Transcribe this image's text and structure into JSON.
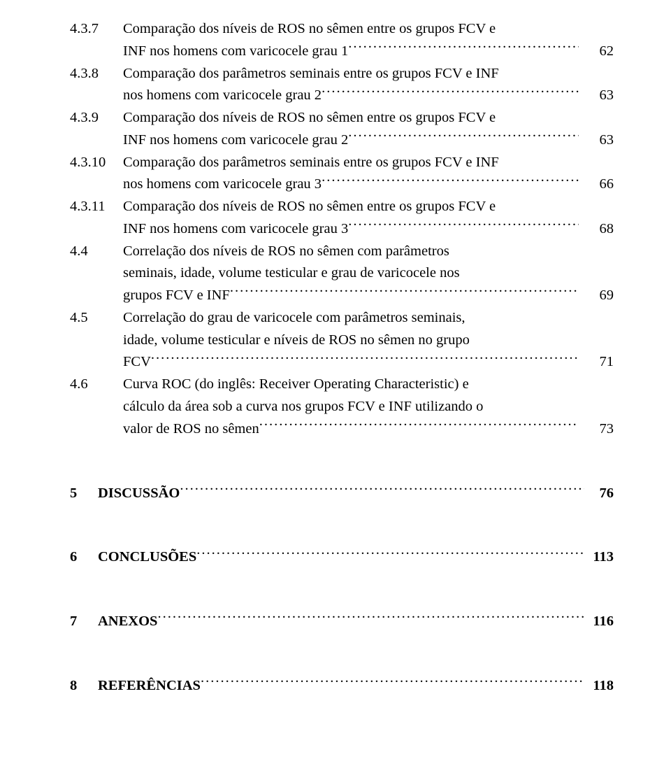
{
  "toc": [
    {
      "num": "4.3.7",
      "lines": [
        "Comparação dos níveis de ROS no sêmen entre os grupos FCV e"
      ],
      "last": "INF nos homens com varicocele grau 1",
      "page": "62"
    },
    {
      "num": "4.3.8",
      "lines": [
        "Comparação dos parâmetros seminais entre os grupos FCV e INF"
      ],
      "last": "nos homens com varicocele grau 2",
      "page": "63"
    },
    {
      "num": "4.3.9",
      "lines": [
        "Comparação dos níveis de ROS no sêmen entre os grupos FCV e"
      ],
      "last": "INF nos homens com varicocele grau 2",
      "page": "63"
    },
    {
      "num": "4.3.10",
      "lines": [
        "Comparação dos parâmetros seminais entre os grupos FCV e INF"
      ],
      "last": "nos homens com varicocele grau 3",
      "page": "66"
    },
    {
      "num": "4.3.11",
      "lines": [
        "Comparação dos níveis de ROS no sêmen entre os grupos FCV e"
      ],
      "last": "INF nos homens com varicocele grau 3",
      "page": "68"
    },
    {
      "num": "4.4",
      "lines": [
        "Correlação dos níveis de ROS no sêmen com parâmetros",
        "seminais, idade, volume testicular e grau de varicocele nos"
      ],
      "last": "grupos FCV e INF",
      "page": "69"
    },
    {
      "num": "4.5",
      "lines": [
        "Correlação do grau de varicocele com parâmetros seminais,",
        "idade, volume testicular e níveis de ROS no sêmen no grupo"
      ],
      "last": "FCV",
      "page": "71"
    },
    {
      "num": "4.6",
      "lines": [
        "Curva ROC (do inglês: Receiver Operating Characteristic) e",
        "cálculo da área sob a curva nos grupos FCV e INF utilizando o"
      ],
      "last": "valor de ROS no sêmen",
      "page": "73"
    }
  ],
  "majors": [
    {
      "num": "5",
      "title": "DISCUSSÃO",
      "page": "76"
    },
    {
      "num": "6",
      "title": "CONCLUSÕES",
      "page": "113"
    },
    {
      "num": "7",
      "title": "ANEXOS",
      "page": "116"
    },
    {
      "num": "8",
      "title": "REFERÊNCIAS",
      "page": "118"
    }
  ]
}
